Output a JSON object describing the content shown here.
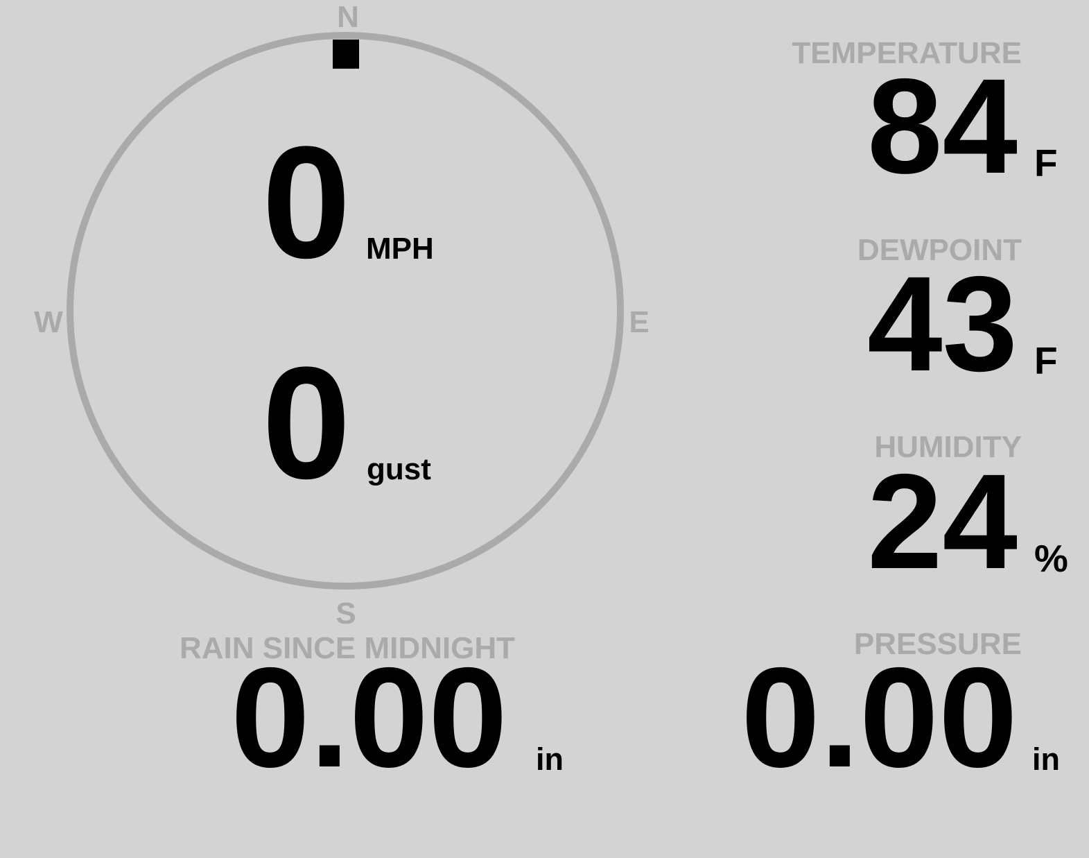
{
  "colors": {
    "background": "#d3d3d3",
    "label": "#aaaaaa",
    "value": "#000000",
    "dial": "#aaaaaa"
  },
  "compass": {
    "n": "N",
    "e": "E",
    "s": "S",
    "w": "W",
    "wind_direction_deg": 0
  },
  "wind": {
    "speed": "0",
    "speed_unit": "MPH",
    "gust": "0",
    "gust_unit": "gust"
  },
  "temperature": {
    "label": "TEMPERATURE",
    "value": "84",
    "unit": "F"
  },
  "dewpoint": {
    "label": "DEWPOINT",
    "value": "43",
    "unit": "F"
  },
  "humidity": {
    "label": "HUMIDITY",
    "value": "24",
    "unit": "%"
  },
  "rain": {
    "label": "RAIN SINCE MIDNIGHT",
    "value": "0.00",
    "unit": "in"
  },
  "pressure": {
    "label": "PRESSURE",
    "value": "0.00",
    "unit": "in"
  }
}
